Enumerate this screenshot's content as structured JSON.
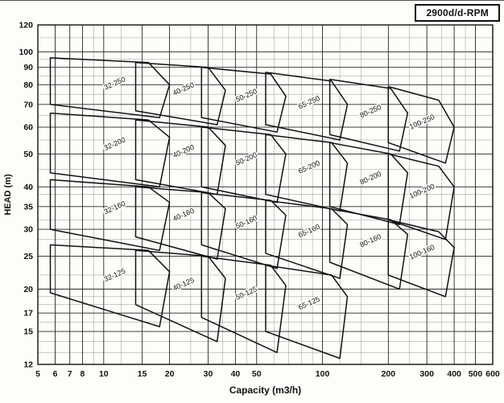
{
  "header": {
    "rpm_label": "2900d/d-RPM"
  },
  "chart_data": {
    "type": "area",
    "subtype": "pump-selection-range-chart",
    "title": "2900d/d-RPM",
    "xlabel": "Capacity (m3/h)",
    "ylabel": "HEAD (m)",
    "x_scale": "log",
    "y_scale": "log",
    "xlim": [
      5,
      600
    ],
    "ylim": [
      12,
      120
    ],
    "grid": true,
    "x_ticks": [
      5,
      6,
      7,
      8,
      10,
      15,
      20,
      30,
      40,
      50,
      100,
      200,
      300,
      400,
      500,
      600
    ],
    "y_ticks": [
      120,
      100,
      90,
      80,
      70,
      60,
      50,
      40,
      35,
      30,
      25,
      20,
      17,
      15,
      12
    ],
    "line_color": "#111111",
    "grid_minor_color": "#8a8a8a",
    "grid_major_color": "#2b2b2b",
    "regions": [
      {
        "label": "32-250",
        "points": [
          [
            5.7,
            96
          ],
          [
            16,
            93
          ],
          [
            20,
            80
          ],
          [
            18,
            64
          ],
          [
            5.7,
            70
          ]
        ]
      },
      {
        "label": "40-250",
        "points": [
          [
            14,
            93
          ],
          [
            30,
            90
          ],
          [
            36,
            77
          ],
          [
            33,
            61
          ],
          [
            14,
            67
          ]
        ]
      },
      {
        "label": "50-250",
        "points": [
          [
            28,
            90
          ],
          [
            58,
            86
          ],
          [
            68,
            74
          ],
          [
            62,
            58
          ],
          [
            28,
            64
          ]
        ]
      },
      {
        "label": "65-250",
        "points": [
          [
            55,
            87
          ],
          [
            110,
            82
          ],
          [
            130,
            70
          ],
          [
            120,
            55
          ],
          [
            55,
            61
          ]
        ]
      },
      {
        "label": "80-250",
        "points": [
          [
            108,
            83
          ],
          [
            205,
            78
          ],
          [
            245,
            66
          ],
          [
            225,
            51
          ],
          [
            108,
            57
          ]
        ]
      },
      {
        "label": "100-250",
        "points": [
          [
            200,
            79
          ],
          [
            340,
            72
          ],
          [
            400,
            60
          ],
          [
            365,
            47
          ],
          [
            200,
            54
          ]
        ]
      },
      {
        "label": "32-200",
        "points": [
          [
            5.7,
            66
          ],
          [
            16,
            63
          ],
          [
            20,
            56
          ],
          [
            18,
            40
          ],
          [
            5.7,
            44
          ]
        ]
      },
      {
        "label": "40-200",
        "points": [
          [
            14,
            63
          ],
          [
            30,
            60
          ],
          [
            36,
            53
          ],
          [
            33,
            38
          ],
          [
            14,
            42
          ]
        ]
      },
      {
        "label": "50-200",
        "points": [
          [
            28,
            60
          ],
          [
            58,
            57
          ],
          [
            68,
            50
          ],
          [
            62,
            36
          ],
          [
            28,
            40
          ]
        ]
      },
      {
        "label": "65-200",
        "points": [
          [
            55,
            57
          ],
          [
            110,
            54
          ],
          [
            130,
            47
          ],
          [
            120,
            34
          ],
          [
            55,
            38
          ]
        ]
      },
      {
        "label": "80-200",
        "points": [
          [
            108,
            54
          ],
          [
            205,
            50
          ],
          [
            245,
            44
          ],
          [
            225,
            31
          ],
          [
            108,
            35
          ]
        ]
      },
      {
        "label": "100-200",
        "points": [
          [
            200,
            50
          ],
          [
            340,
            46
          ],
          [
            400,
            40
          ],
          [
            365,
            28
          ],
          [
            200,
            32
          ]
        ]
      },
      {
        "label": "32-160",
        "points": [
          [
            5.7,
            42
          ],
          [
            16,
            40
          ],
          [
            20,
            36
          ],
          [
            18,
            26
          ],
          [
            5.7,
            30
          ]
        ]
      },
      {
        "label": "40-160",
        "points": [
          [
            14,
            40
          ],
          [
            30,
            38.5
          ],
          [
            36,
            34.5
          ],
          [
            33,
            24.5
          ],
          [
            14,
            28.5
          ]
        ]
      },
      {
        "label": "50-160",
        "points": [
          [
            28,
            38.5
          ],
          [
            58,
            36.5
          ],
          [
            68,
            33
          ],
          [
            62,
            23
          ],
          [
            28,
            27
          ]
        ]
      },
      {
        "label": "65-160",
        "points": [
          [
            55,
            36.5
          ],
          [
            110,
            34.5
          ],
          [
            130,
            31
          ],
          [
            120,
            21.5
          ],
          [
            55,
            25.5
          ]
        ]
      },
      {
        "label": "80-160",
        "points": [
          [
            108,
            34.5
          ],
          [
            205,
            32
          ],
          [
            245,
            29
          ],
          [
            225,
            20
          ],
          [
            108,
            24
          ]
        ]
      },
      {
        "label": "100-160",
        "points": [
          [
            200,
            32
          ],
          [
            340,
            29.5
          ],
          [
            400,
            26.5
          ],
          [
            365,
            19
          ],
          [
            200,
            22
          ]
        ]
      },
      {
        "label": "32-125",
        "points": [
          [
            5.7,
            27
          ],
          [
            16,
            26
          ],
          [
            20,
            22.5
          ],
          [
            18,
            15.5
          ],
          [
            5.7,
            19.5
          ]
        ]
      },
      {
        "label": "40-125",
        "points": [
          [
            14,
            26
          ],
          [
            30,
            25
          ],
          [
            36,
            21.5
          ],
          [
            33,
            14
          ],
          [
            14,
            18
          ]
        ]
      },
      {
        "label": "50-125",
        "points": [
          [
            28,
            25
          ],
          [
            58,
            23.5
          ],
          [
            68,
            20.5
          ],
          [
            62,
            13
          ],
          [
            28,
            16.5
          ]
        ]
      },
      {
        "label": "65-125",
        "points": [
          [
            55,
            23.5
          ],
          [
            110,
            22
          ],
          [
            130,
            19
          ],
          [
            120,
            12.5
          ],
          [
            55,
            15
          ]
        ]
      }
    ]
  }
}
